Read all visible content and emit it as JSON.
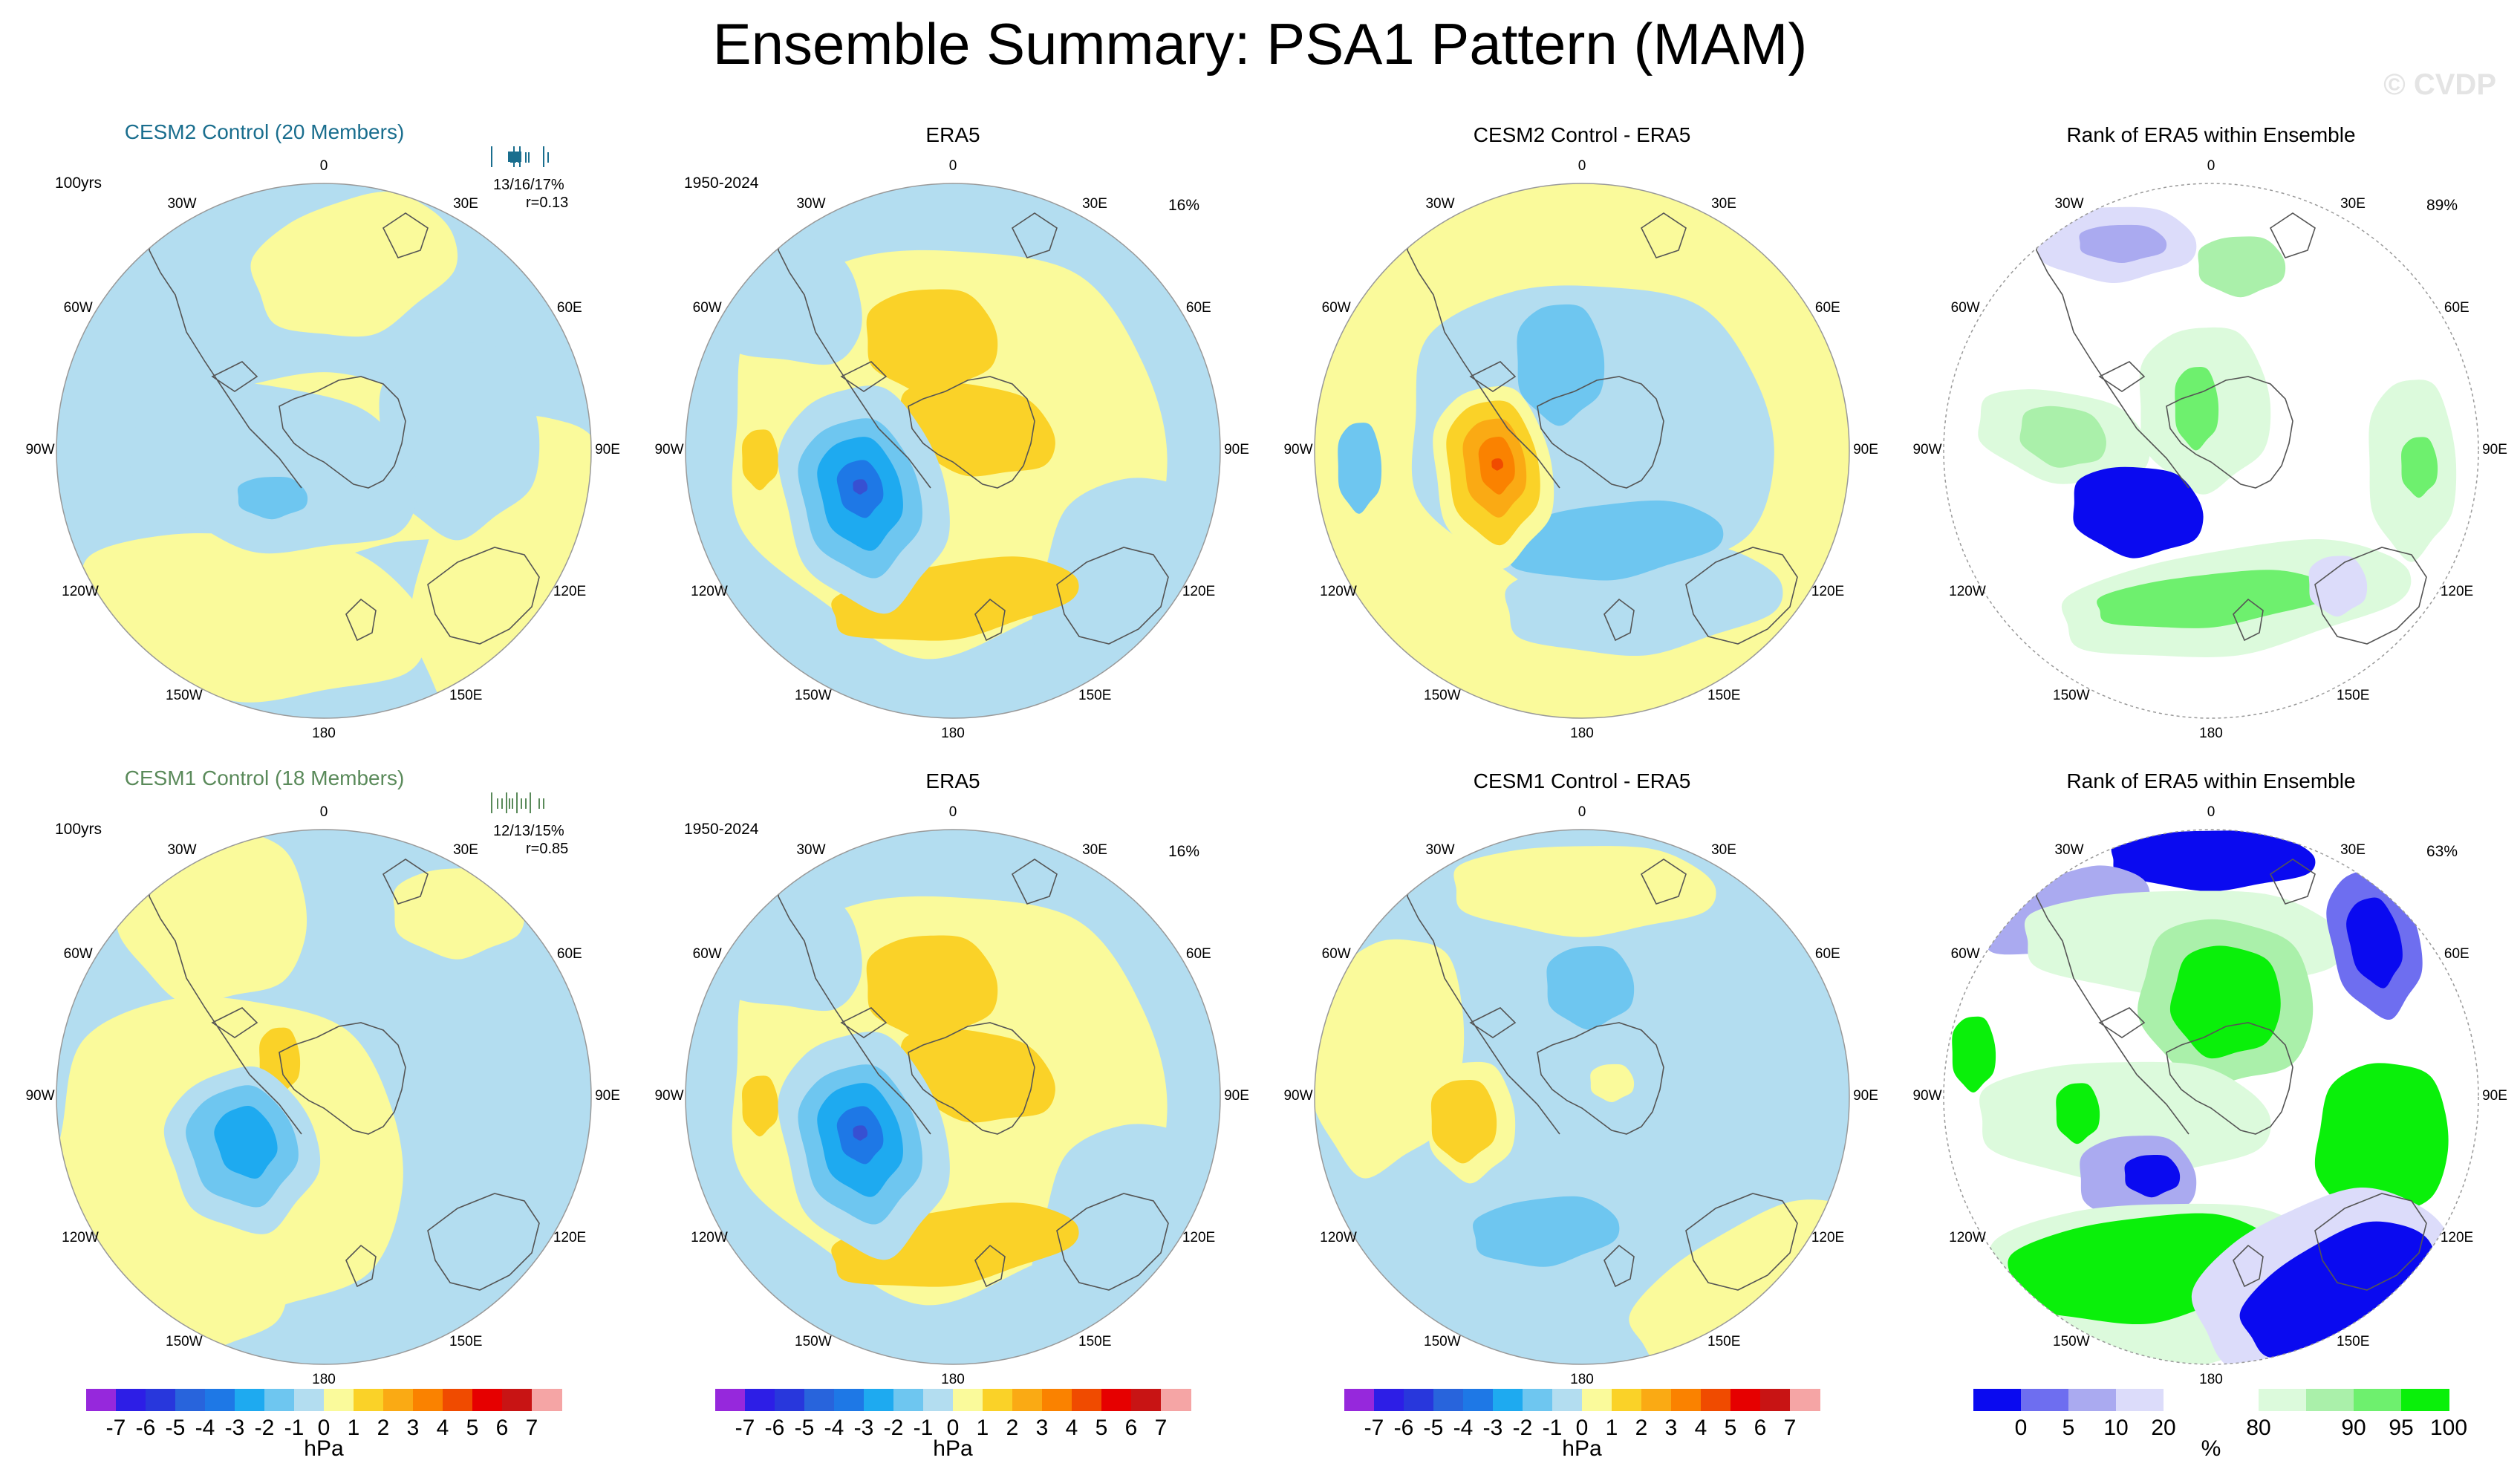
{
  "title": "Ensemble Summary: PSA1 Pattern (MAM)",
  "watermark": "© CVDP",
  "rows": [
    {
      "panels": [
        {
          "title": "CESM2 Control (20 Members)",
          "style": "ctl2",
          "corner_left": "100yrs",
          "stats_line1": "13/16/17%",
          "stats_line2": "r=0.13"
        },
        {
          "title": "ERA5",
          "corner_left": "1950-2024",
          "corner_right": "16%"
        },
        {
          "title": "CESM2 Control - ERA5"
        },
        {
          "title": "Rank of ERA5 within Ensemble",
          "corner_right": "89%"
        }
      ]
    },
    {
      "panels": [
        {
          "title": "CESM1 Control (18 Members)",
          "style": "ctl1",
          "corner_left": "100yrs",
          "stats_line1": "12/13/15%",
          "stats_line2": "r=0.85"
        },
        {
          "title": "ERA5",
          "corner_left": "1950-2024",
          "corner_right": "16%"
        },
        {
          "title": "CESM1 Control - ERA5"
        },
        {
          "title": "Rank of ERA5 within Ensemble",
          "corner_right": "63%"
        }
      ]
    }
  ],
  "lon_labels": {
    "l0": "0",
    "l30e": "30E",
    "l60e": "60E",
    "l90e": "90E",
    "l120e": "120E",
    "l150e": "150E",
    "l180": "180",
    "l150w": "150W",
    "l120w": "120W",
    "l90w": "90W",
    "l60w": "60W",
    "l30w": "30W"
  },
  "colors": {
    "neg1": "#b3ddf0",
    "neg2": "#6ec6f0",
    "neg3": "#1eaaf0",
    "neg4": "#1e78e6",
    "neg5": "#3750d2",
    "pos1": "#fafa9b",
    "pos2": "#fad228",
    "pos3": "#faaa14",
    "pos4": "#fa8200",
    "pos5": "#f04b00",
    "coast": "#555555",
    "rim": "#999999"
  },
  "hpa_colorbar": {
    "unit": "hPa",
    "colors": [
      "#9628dc",
      "#2d1ee6",
      "#2837dc",
      "#2864dc",
      "#1e78e6",
      "#1eaaf0",
      "#6ec6f0",
      "#b3ddf0",
      "#fafa9b",
      "#fad228",
      "#faaa14",
      "#fa8200",
      "#f04b00",
      "#e60000",
      "#c81414",
      "#f5a5a5"
    ],
    "ticks": [
      "-7",
      "-6",
      "-5",
      "-4",
      "-3",
      "-2",
      "-1",
      "0",
      "1",
      "2",
      "3",
      "4",
      "5",
      "6",
      "7"
    ]
  },
  "rank_colorbar": {
    "unit": "%",
    "colors": [
      "#0a0af0",
      "#6e6ef0",
      "#aaaaf0",
      "#dcdcfa",
      "#ffffff",
      "#ffffff",
      "#dcfadc",
      "#aaf0aa",
      "#6ef06e",
      "#0af00a"
    ],
    "ticks": [
      "0",
      "5",
      "10",
      "20",
      "80",
      "90",
      "95",
      "100"
    ]
  }
}
